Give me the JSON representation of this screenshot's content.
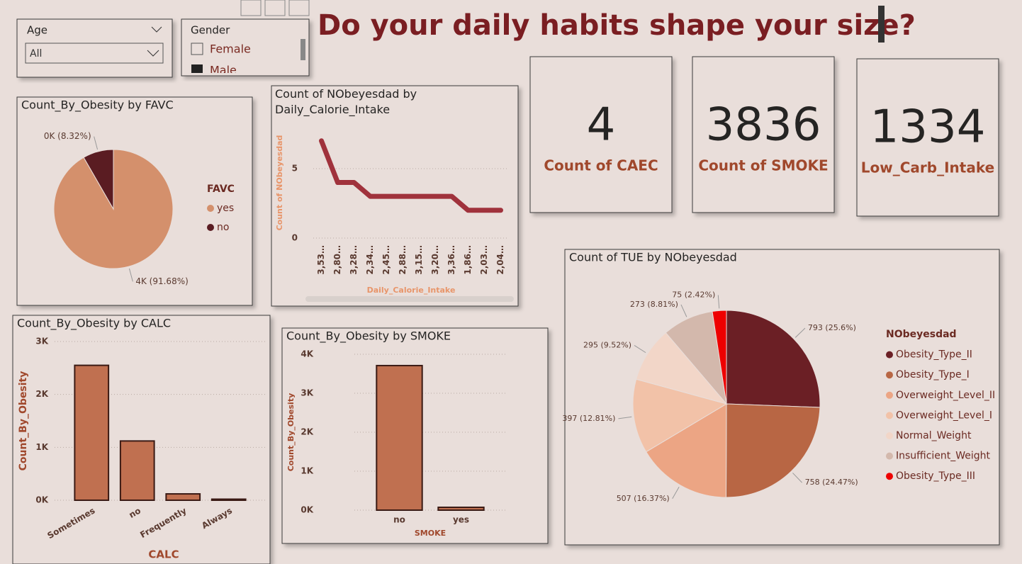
{
  "header": {
    "title": "Do your daily habits shape your size?"
  },
  "slicers": {
    "age": {
      "label": "Age",
      "value": "All"
    },
    "gender": {
      "label": "Gender",
      "options": [
        "Female",
        "Male"
      ]
    }
  },
  "cards": [
    {
      "value": 4,
      "label": "Count of CAEC"
    },
    {
      "value": 3836,
      "label": "Count of SMOKE"
    },
    {
      "value": 1334,
      "label": "Low_Carb_Intake"
    }
  ],
  "chart_data": [
    {
      "type": "pie",
      "title": "Count_By_Obesity by FAVC",
      "legend_title": "FAVC",
      "categories": [
        "yes",
        "no"
      ],
      "values": [
        3829,
        347
      ],
      "value_labels": [
        "4K (91.68%)",
        "0K (8.32%)"
      ],
      "colors": [
        "#d4906c",
        "#5a1c22"
      ]
    },
    {
      "type": "line",
      "title": "Count of NObeyesdad by Daily_Calorie_Intake",
      "xlabel": "Daily_Calorie_Intake",
      "ylabel": "Count of NObeyesdad",
      "categories": [
        "3,53…",
        "2,80…",
        "3,28…",
        "2,34…",
        "2,45…",
        "2,88…",
        "3,15…",
        "3,20…",
        "3,36…",
        "1,86…",
        "2,03…",
        "2,04…"
      ],
      "values": [
        7,
        4,
        4,
        3,
        3,
        3,
        3,
        3,
        3,
        2,
        2,
        2
      ],
      "color": "#a0323c",
      "ylim": [
        0,
        7.7
      ],
      "yticks": [
        0,
        5
      ],
      "grid": true
    },
    {
      "type": "bar",
      "title": "Count_By_Obesity by CALC",
      "xlabel": "CALC",
      "ylabel": "Count_By_Obesity",
      "categories": [
        "Sometimes",
        "no",
        "Frequently",
        "Always"
      ],
      "values": [
        2550,
        1120,
        120,
        20
      ],
      "color": "#c07050",
      "ylim": [
        0,
        3000
      ],
      "yticks": [
        {
          "value": 0,
          "label": "0K"
        },
        {
          "value": 1000,
          "label": "1K"
        },
        {
          "value": 2000,
          "label": "2K"
        },
        {
          "value": 3000,
          "label": "3K"
        }
      ],
      "grid": true
    },
    {
      "type": "bar",
      "title": "Count_By_Obesity by SMOKE",
      "xlabel": "SMOKE",
      "ylabel": "Count_By_Obesity",
      "categories": [
        "no",
        "yes"
      ],
      "values": [
        3710,
        73
      ],
      "color": "#c07050",
      "ylim": [
        0,
        4000
      ],
      "yticks": [
        {
          "value": 0,
          "label": "0K"
        },
        {
          "value": 1000,
          "label": "1K"
        },
        {
          "value": 2000,
          "label": "2K"
        },
        {
          "value": 3000,
          "label": "3K"
        },
        {
          "value": 4000,
          "label": "4K"
        }
      ],
      "grid": true
    },
    {
      "type": "pie",
      "title": "Count of TUE by NObeyesdad",
      "legend_title": "NObeyesdad",
      "categories": [
        "Obesity_Type_II",
        "Obesity_Type_I",
        "Overweight_Level_II",
        "Overweight_Level_I",
        "Normal_Weight",
        "Insufficient_Weight",
        "Obesity_Type_III"
      ],
      "values": [
        793,
        758,
        507,
        397,
        295,
        273,
        75
      ],
      "value_labels": [
        "793 (25.6%)",
        "758 (24.47%)",
        "507 (16.37%)",
        "397 (12.81%)",
        "295 (9.52%)",
        "273 (8.81%)",
        "75 (2.42%)"
      ],
      "colors": [
        "#6b1f25",
        "#b86644",
        "#eca584",
        "#f2c2a8",
        "#f2d6c8",
        "#d3b8ac",
        "#ee0000"
      ]
    }
  ]
}
